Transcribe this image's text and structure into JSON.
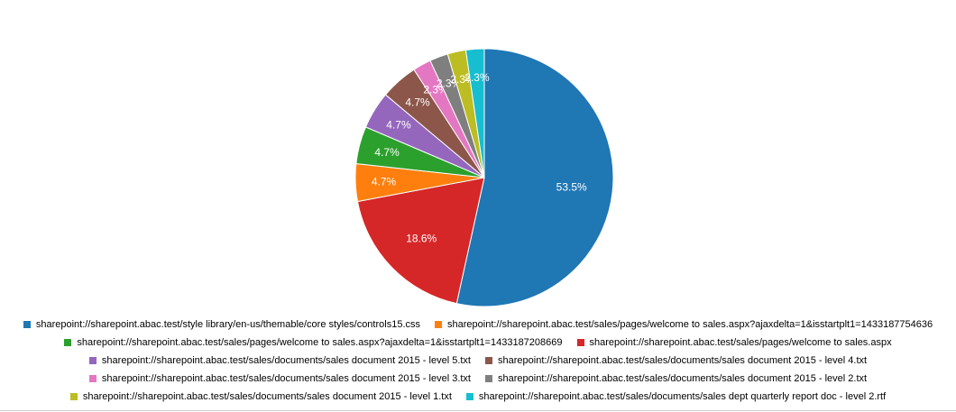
{
  "chart_data": {
    "type": "pie",
    "title": "",
    "slices": [
      {
        "label": "sharepoint://sharepoint.abac.test/style library/en-us/themable/core styles/controls15.css",
        "value": 53.5,
        "display": "53.5%",
        "color": "#1f77b4"
      },
      {
        "label": "sharepoint://sharepoint.abac.test/sales/pages/welcome to sales.aspx",
        "value": 18.6,
        "display": "18.6%",
        "color": "#d62728"
      },
      {
        "label": "sharepoint://sharepoint.abac.test/sales/pages/welcome to sales.aspx?ajaxdelta=1&isstartplt1=1433187754636",
        "value": 4.7,
        "display": "4.7%",
        "color": "#ff7f0e"
      },
      {
        "label": "sharepoint://sharepoint.abac.test/sales/pages/welcome to sales.aspx?ajaxdelta=1&isstartplt1=1433187208669",
        "value": 4.7,
        "display": "4.7%",
        "color": "#2ca02c"
      },
      {
        "label": "sharepoint://sharepoint.abac.test/sales/documents/sales document 2015 - level 5.txt",
        "value": 4.7,
        "display": "4.7%",
        "color": "#9467bd"
      },
      {
        "label": "sharepoint://sharepoint.abac.test/sales/documents/sales document 2015 - level 4.txt",
        "value": 4.7,
        "display": "4.7%",
        "color": "#8c564b"
      },
      {
        "label": "sharepoint://sharepoint.abac.test/sales/documents/sales document 2015 - level 3.txt",
        "value": 2.3,
        "display": "2.3%",
        "color": "#e377c2"
      },
      {
        "label": "sharepoint://sharepoint.abac.test/sales/documents/sales document 2015 - level 2.txt",
        "value": 2.3,
        "display": "2.3%",
        "color": "#7f7f7f"
      },
      {
        "label": "sharepoint://sharepoint.abac.test/sales/documents/sales document 2015 - level 1.txt",
        "value": 2.3,
        "display": "2.3%",
        "color": "#bcbd22"
      },
      {
        "label": "sharepoint://sharepoint.abac.test/sales/documents/sales dept quarterly report doc - level 2.rtf",
        "value": 2.3,
        "display": "2.3%",
        "color": "#17becf"
      }
    ],
    "legend": {
      "placement": "bottom",
      "rows": [
        [
          {
            "label": "sharepoint://sharepoint.abac.test/style library/en-us/themable/core styles/controls15.css",
            "color": "#1f77b4"
          },
          {
            "label": "sharepoint://sharepoint.abac.test/sales/pages/welcome to sales.aspx?ajaxdelta=1&isstartplt1=1433187754636",
            "color": "#ff7f0e"
          }
        ],
        [
          {
            "label": "sharepoint://sharepoint.abac.test/sales/pages/welcome to sales.aspx?ajaxdelta=1&isstartplt1=1433187208669",
            "color": "#2ca02c"
          },
          {
            "label": "sharepoint://sharepoint.abac.test/sales/pages/welcome to sales.aspx",
            "color": "#d62728"
          }
        ],
        [
          {
            "label": "sharepoint://sharepoint.abac.test/sales/documents/sales document 2015 - level 5.txt",
            "color": "#9467bd"
          },
          {
            "label": "sharepoint://sharepoint.abac.test/sales/documents/sales document 2015 - level 4.txt",
            "color": "#8c564b"
          }
        ],
        [
          {
            "label": "sharepoint://sharepoint.abac.test/sales/documents/sales document 2015 - level 3.txt",
            "color": "#e377c2"
          },
          {
            "label": "sharepoint://sharepoint.abac.test/sales/documents/sales document 2015 - level 2.txt",
            "color": "#7f7f7f"
          }
        ],
        [
          {
            "label": "sharepoint://sharepoint.abac.test/sales/documents/sales document 2015 - level 1.txt",
            "color": "#bcbd22"
          },
          {
            "label": "sharepoint://sharepoint.abac.test/sales/documents/sales dept quarterly report doc - level 2.rtf",
            "color": "#17becf"
          }
        ]
      ]
    }
  }
}
